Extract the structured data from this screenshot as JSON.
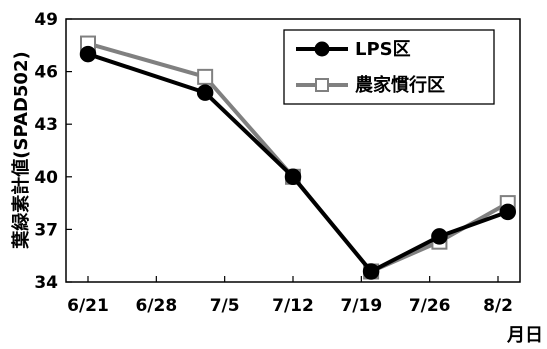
{
  "chart_data": {
    "type": "line",
    "title": "",
    "xlabel": "月日",
    "ylabel": "葉緑素計値(SPAD502)",
    "x_ticks": [
      "6/21",
      "6/28",
      "7/5",
      "7/12",
      "7/19",
      "7/26",
      "8/2"
    ],
    "x_tick_values": [
      0,
      7,
      14,
      21,
      28,
      35,
      42
    ],
    "y_ticks": [
      "34",
      "37",
      "40",
      "43",
      "46",
      "49"
    ],
    "ylim": [
      34,
      49
    ],
    "x": [
      0,
      12,
      21,
      29,
      36,
      43
    ],
    "series": [
      {
        "name": "LPS区",
        "values": [
          47.0,
          44.8,
          40.0,
          34.6,
          36.6,
          38.0
        ],
        "color": "#000000",
        "marker": "filled-circle"
      },
      {
        "name": "農家慣行区",
        "values": [
          47.6,
          45.7,
          40.0,
          34.6,
          36.3,
          38.5
        ],
        "color": "#808080",
        "marker": "hollow-square"
      }
    ],
    "legend": "top-right",
    "grid": false
  }
}
